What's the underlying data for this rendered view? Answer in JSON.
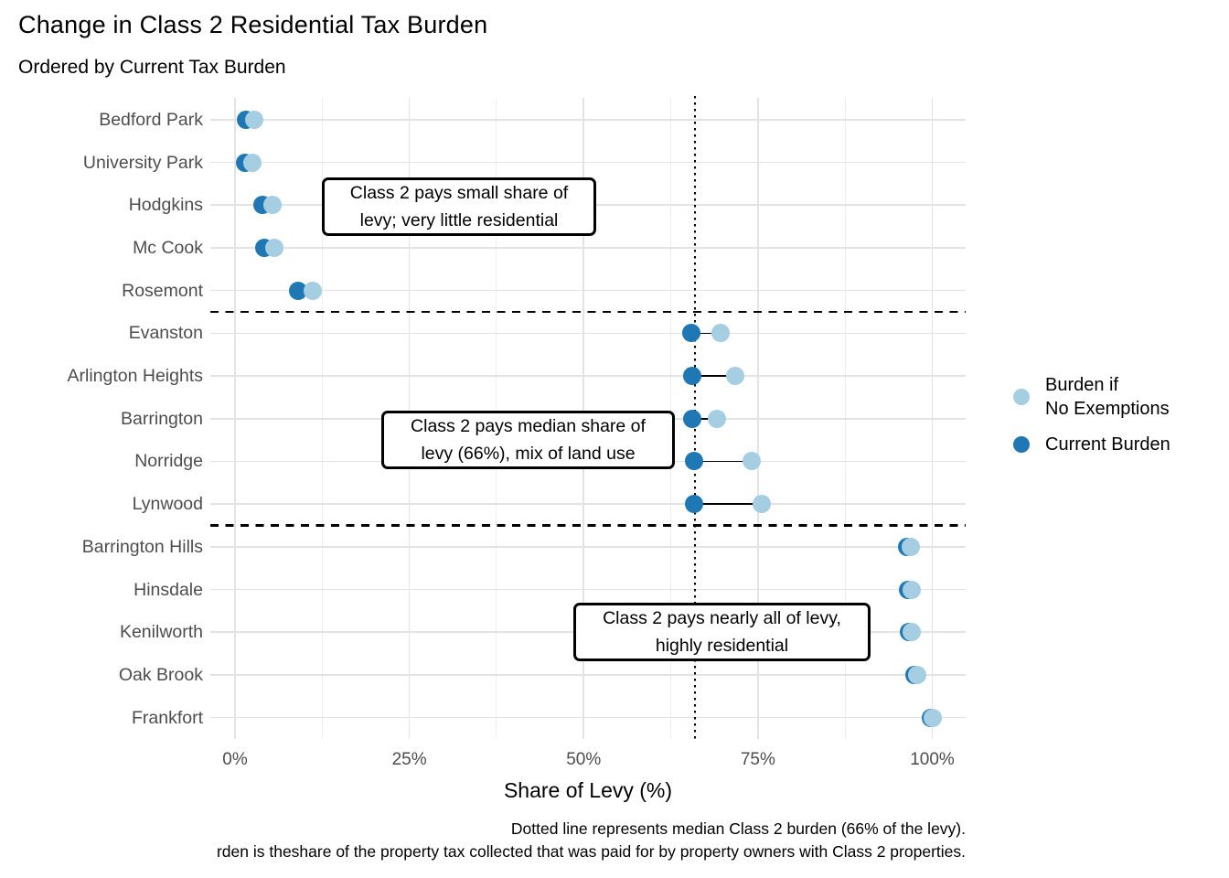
{
  "title": "Change in Class 2 Residential Tax Burden",
  "subtitle": "Ordered by Current Tax Burden",
  "x_axis": {
    "label": "Share of Levy (%)",
    "ticks": [
      "0%",
      "25%",
      "50%",
      "75%",
      "100%"
    ],
    "tick_values": [
      0,
      25,
      50,
      75,
      100
    ],
    "minor_tick_values": [
      12.5,
      37.5,
      62.5,
      87.5
    ],
    "range": [
      0,
      100
    ]
  },
  "legend": {
    "items": [
      {
        "line1": "Burden if",
        "line2": "No Exemptions",
        "color": "#A6CEE3"
      },
      {
        "line1": "Current Burden",
        "line2": "",
        "color": "#1F78B4"
      }
    ]
  },
  "annotations": [
    {
      "line1": "Class 2 pays small share of",
      "line2": "levy; very little residential"
    },
    {
      "line1": "Class 2 pays median share of",
      "line2": "levy (66%), mix of land use"
    },
    {
      "line1": "Class 2 pays nearly all of levy,",
      "line2": "highly residential"
    }
  ],
  "caption_line1": "Dotted line represents median Class 2 burden (66% of the levy).",
  "caption_line2": "rden is theshare of the property tax collected that was paid for by property owners with Class 2 properties.",
  "chart_data": {
    "type": "scatter",
    "subtype": "dumbbell-dot-plot",
    "categories": [
      "Bedford Park",
      "University Park",
      "Hodgkins",
      "Mc Cook",
      "Rosemont",
      "Evanston",
      "Arlington Heights",
      "Barrington",
      "Norridge",
      "Lynwood",
      "Barrington Hills",
      "Hinsdale",
      "Kenilworth",
      "Oak Brook",
      "Frankfort"
    ],
    "series": [
      {
        "name": "Current Burden",
        "color": "#1F78B4",
        "values": [
          1.6,
          1.4,
          3.9,
          4.2,
          9.0,
          65.4,
          65.6,
          65.6,
          65.8,
          65.8,
          96.4,
          96.5,
          96.6,
          97.4,
          99.8
        ]
      },
      {
        "name": "Burden if No Exemptions",
        "color": "#A6CEE3",
        "values": [
          2.8,
          2.5,
          5.4,
          5.7,
          11.2,
          69.6,
          71.7,
          69.1,
          74.1,
          75.5,
          96.9,
          97.0,
          97.1,
          97.9,
          100.0
        ]
      }
    ],
    "median_line_value": 66,
    "group_separators_after_index": [
      4,
      9
    ],
    "grid": true,
    "legend_position": "right",
    "xlim": [
      0,
      100
    ],
    "title": "Change in Class 2 Residential Tax Burden",
    "xlabel": "Share of Levy (%)"
  }
}
